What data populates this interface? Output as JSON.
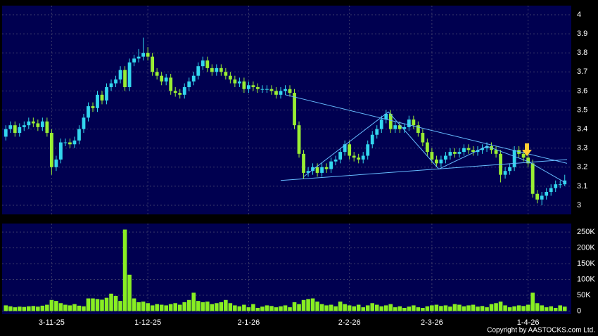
{
  "copyright": "Copyright by AASTOCKS.com Ltd.",
  "chart_data": [
    {
      "type": "candlestick",
      "up_color": "#33d6ee",
      "down_color": "#99ee33",
      "line_color": "#66bbff",
      "grid": true,
      "ylim": [
        2.952,
        4.048
      ],
      "yticks": [
        3,
        3.1,
        3.2,
        3.3,
        3.4,
        3.5,
        3.6,
        3.7,
        3.8,
        3.9,
        4
      ],
      "open": [
        3.36,
        3.4,
        3.42,
        3.38,
        3.41,
        3.42,
        3.44,
        3.43,
        3.41,
        3.44,
        3.38,
        3.2,
        3.24,
        3.33,
        3.33,
        3.32,
        3.34,
        3.4,
        3.46,
        3.52,
        3.51,
        3.58,
        3.55,
        3.62,
        3.64,
        3.66,
        3.71,
        3.62,
        3.75,
        3.77,
        3.78,
        3.8,
        3.78,
        3.7,
        3.68,
        3.65,
        3.67,
        3.6,
        3.59,
        3.58,
        3.62,
        3.65,
        3.68,
        3.73,
        3.76,
        3.72,
        3.7,
        3.72,
        3.7,
        3.68,
        3.66,
        3.64,
        3.65,
        3.61,
        3.63,
        3.62,
        3.61,
        3.61,
        3.61,
        3.6,
        3.58,
        3.6,
        3.61,
        3.59,
        3.42,
        3.27,
        3.17,
        3.18,
        3.2,
        3.17,
        3.2,
        3.19,
        3.23,
        3.24,
        3.28,
        3.32,
        3.26,
        3.25,
        3.24,
        3.26,
        3.32,
        3.37,
        3.4,
        3.45,
        3.48,
        3.4,
        3.42,
        3.4,
        3.41,
        3.45,
        3.42,
        3.38,
        3.33,
        3.28,
        3.24,
        3.22,
        3.24,
        3.26,
        3.28,
        3.27,
        3.28,
        3.3,
        3.29,
        3.28,
        3.29,
        3.3,
        3.31,
        3.29,
        3.27,
        3.16,
        3.18,
        3.2,
        3.29,
        3.27,
        3.25,
        3.22,
        3.06,
        3.03,
        3.05,
        3.07,
        3.09,
        3.11,
        3.11
      ],
      "high": [
        3.42,
        3.44,
        3.44,
        3.43,
        3.44,
        3.46,
        3.46,
        3.45,
        3.46,
        3.46,
        3.4,
        3.26,
        3.35,
        3.35,
        3.35,
        3.36,
        3.42,
        3.48,
        3.54,
        3.54,
        3.6,
        3.6,
        3.64,
        3.66,
        3.68,
        3.73,
        3.73,
        3.77,
        3.79,
        3.82,
        3.88,
        3.83,
        3.8,
        3.72,
        3.7,
        3.69,
        3.69,
        3.62,
        3.61,
        3.64,
        3.67,
        3.7,
        3.75,
        3.78,
        3.78,
        3.74,
        3.74,
        3.74,
        3.72,
        3.7,
        3.68,
        3.67,
        3.67,
        3.65,
        3.65,
        3.64,
        3.63,
        3.63,
        3.63,
        3.62,
        3.62,
        3.63,
        3.63,
        3.61,
        3.44,
        3.29,
        3.2,
        3.22,
        3.22,
        3.22,
        3.22,
        3.25,
        3.26,
        3.3,
        3.34,
        3.34,
        3.28,
        3.27,
        3.28,
        3.34,
        3.39,
        3.42,
        3.47,
        3.5,
        3.5,
        3.44,
        3.44,
        3.43,
        3.47,
        3.47,
        3.44,
        3.4,
        3.35,
        3.3,
        3.26,
        3.26,
        3.28,
        3.3,
        3.3,
        3.3,
        3.32,
        3.32,
        3.31,
        3.31,
        3.32,
        3.33,
        3.33,
        3.31,
        3.29,
        3.2,
        3.22,
        3.31,
        3.31,
        3.29,
        3.27,
        3.24,
        3.08,
        3.07,
        3.09,
        3.11,
        3.13,
        3.13,
        3.16
      ],
      "low": [
        3.34,
        3.38,
        3.36,
        3.36,
        3.39,
        3.4,
        3.41,
        3.39,
        3.39,
        3.36,
        3.16,
        3.18,
        3.22,
        3.31,
        3.3,
        3.3,
        3.32,
        3.38,
        3.44,
        3.49,
        3.49,
        3.53,
        3.53,
        3.6,
        3.62,
        3.64,
        3.6,
        3.6,
        3.73,
        3.75,
        3.76,
        3.76,
        3.68,
        3.66,
        3.63,
        3.63,
        3.58,
        3.57,
        3.56,
        3.56,
        3.6,
        3.63,
        3.66,
        3.71,
        3.7,
        3.68,
        3.68,
        3.68,
        3.66,
        3.64,
        3.62,
        3.62,
        3.59,
        3.59,
        3.6,
        3.59,
        3.59,
        3.59,
        3.58,
        3.56,
        3.56,
        3.58,
        3.57,
        3.4,
        3.25,
        3.14,
        3.15,
        3.16,
        3.15,
        3.15,
        3.17,
        3.17,
        3.21,
        3.22,
        3.26,
        3.24,
        3.23,
        3.22,
        3.22,
        3.24,
        3.3,
        3.35,
        3.38,
        3.43,
        3.38,
        3.38,
        3.38,
        3.38,
        3.39,
        3.4,
        3.36,
        3.31,
        3.26,
        3.22,
        3.2,
        3.2,
        3.22,
        3.24,
        3.25,
        3.25,
        3.26,
        3.27,
        3.26,
        3.26,
        3.27,
        3.28,
        3.27,
        3.25,
        3.12,
        3.14,
        3.16,
        3.18,
        3.25,
        3.23,
        3.2,
        3.04,
        3.01,
        3.0,
        3.03,
        3.05,
        3.07,
        3.09,
        3.1
      ],
      "close": [
        3.4,
        3.42,
        3.38,
        3.41,
        3.42,
        3.44,
        3.43,
        3.41,
        3.44,
        3.38,
        3.2,
        3.24,
        3.33,
        3.33,
        3.32,
        3.34,
        3.4,
        3.46,
        3.52,
        3.51,
        3.58,
        3.55,
        3.62,
        3.64,
        3.66,
        3.71,
        3.62,
        3.75,
        3.77,
        3.78,
        3.8,
        3.78,
        3.7,
        3.68,
        3.65,
        3.67,
        3.6,
        3.59,
        3.58,
        3.62,
        3.65,
        3.68,
        3.73,
        3.76,
        3.72,
        3.7,
        3.72,
        3.7,
        3.68,
        3.66,
        3.64,
        3.65,
        3.61,
        3.63,
        3.62,
        3.61,
        3.61,
        3.61,
        3.6,
        3.58,
        3.6,
        3.61,
        3.59,
        3.42,
        3.27,
        3.17,
        3.18,
        3.2,
        3.17,
        3.2,
        3.19,
        3.23,
        3.24,
        3.28,
        3.32,
        3.26,
        3.25,
        3.24,
        3.26,
        3.32,
        3.37,
        3.4,
        3.45,
        3.48,
        3.4,
        3.42,
        3.4,
        3.41,
        3.45,
        3.42,
        3.38,
        3.33,
        3.28,
        3.24,
        3.22,
        3.24,
        3.26,
        3.28,
        3.27,
        3.28,
        3.3,
        3.29,
        3.28,
        3.29,
        3.3,
        3.31,
        3.29,
        3.27,
        3.16,
        3.18,
        3.2,
        3.29,
        3.27,
        3.25,
        3.22,
        3.06,
        3.03,
        3.05,
        3.07,
        3.09,
        3.11,
        3.11,
        3.13
      ],
      "trendlines": [
        [
          [
            61,
            3.58
          ],
          [
            122.5,
            3.22
          ]
        ],
        [
          [
            60,
            3.13
          ],
          [
            122.5,
            3.24
          ]
        ],
        [
          [
            65,
            3.15
          ],
          [
            83.5,
            3.49
          ],
          [
            94.5,
            3.19
          ],
          [
            105,
            3.31
          ],
          [
            114,
            3.23
          ],
          [
            122,
            3.12
          ]
        ]
      ]
    },
    {
      "type": "bar",
      "color": "#88ee22",
      "grid": true,
      "ylim": [
        -10000,
        277000
      ],
      "yticks": [
        0,
        {
          "value": 50000,
          "label": "50K"
        },
        {
          "value": 100000,
          "label": "100K"
        },
        {
          "value": 150000,
          "label": "150K"
        },
        {
          "value": 200000,
          "label": "200K"
        },
        {
          "value": 250000,
          "label": "250K"
        }
      ],
      "categories": [
        null,
        null,
        null,
        null,
        null,
        null,
        null,
        null,
        null,
        null,
        "3-11-25",
        null,
        null,
        null,
        null,
        null,
        null,
        null,
        null,
        null,
        null,
        null,
        null,
        null,
        null,
        null,
        null,
        null,
        null,
        null,
        null,
        "1-12-25",
        null,
        null,
        null,
        null,
        null,
        null,
        null,
        null,
        null,
        null,
        null,
        null,
        null,
        null,
        null,
        null,
        null,
        null,
        null,
        null,
        null,
        "2-1-26",
        null,
        null,
        null,
        null,
        null,
        null,
        null,
        null,
        null,
        null,
        null,
        null,
        null,
        null,
        null,
        null,
        null,
        null,
        null,
        null,
        null,
        "2-2-26",
        null,
        null,
        null,
        null,
        null,
        null,
        null,
        null,
        null,
        null,
        null,
        null,
        null,
        null,
        null,
        null,
        null,
        "2-3-26",
        null,
        null,
        null,
        null,
        null,
        null,
        null,
        null,
        null,
        null,
        null,
        null,
        null,
        null,
        null,
        null,
        null,
        null,
        null,
        null,
        "1-4-26",
        null,
        null,
        null,
        null,
        null,
        null,
        null,
        null
      ],
      "values": [
        18000,
        15000,
        12000,
        14000,
        13000,
        15000,
        16000,
        14000,
        17000,
        20000,
        35000,
        32000,
        25000,
        20000,
        18000,
        22000,
        17000,
        15000,
        40000,
        40000,
        38000,
        36000,
        42000,
        55000,
        48000,
        32000,
        258000,
        115000,
        40000,
        28000,
        30000,
        25000,
        18000,
        22000,
        20000,
        18000,
        22000,
        25000,
        20000,
        28000,
        35000,
        58000,
        32000,
        28000,
        30000,
        22000,
        25000,
        28000,
        35000,
        25000,
        18000,
        15000,
        20000,
        12000,
        22000,
        10000,
        14000,
        18000,
        16000,
        12000,
        15000,
        18000,
        12000,
        28000,
        22000,
        35000,
        38000,
        40000,
        30000,
        22000,
        18000,
        20000,
        15000,
        30000,
        22000,
        18000,
        15000,
        20000,
        12000,
        18000,
        25000,
        20000,
        15000,
        18000,
        22000,
        12000,
        15000,
        10000,
        14000,
        18000,
        12000,
        10000,
        15000,
        18000,
        20000,
        16000,
        18000,
        14000,
        22000,
        20000,
        15000,
        18000,
        20000,
        14000,
        16000,
        12000,
        22000,
        25000,
        30000,
        18000,
        12000,
        15000,
        18000,
        16000,
        20000,
        58000,
        25000,
        18000,
        12000,
        15000,
        10000,
        18000,
        14000
      ]
    }
  ]
}
